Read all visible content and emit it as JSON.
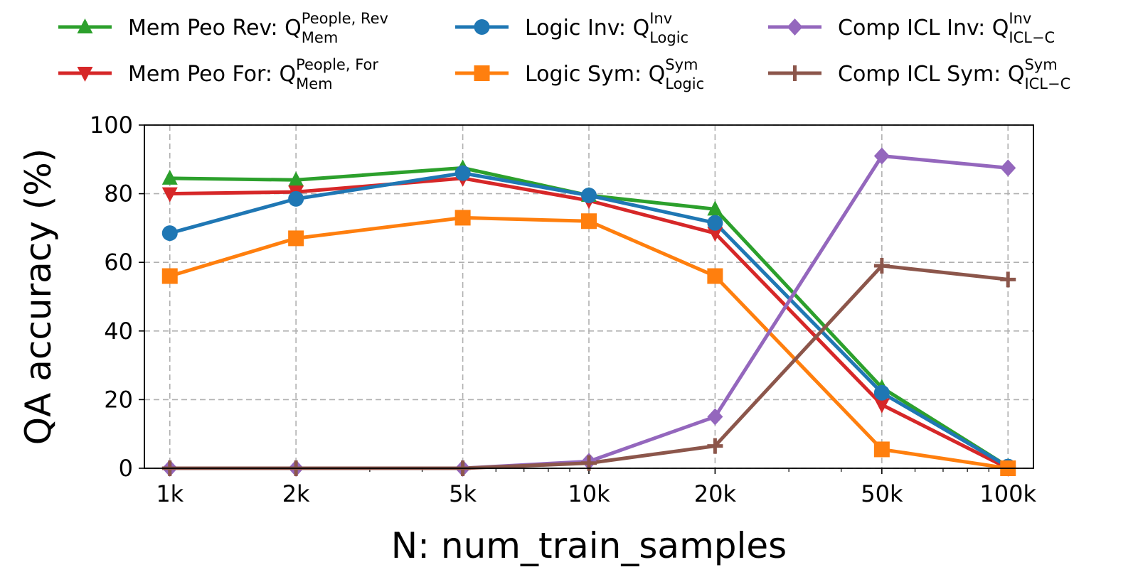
{
  "chart_data": {
    "type": "line",
    "title": "",
    "xlabel": "N: num_train_samples",
    "ylabel": "QA accuracy (%)",
    "xscale": "log",
    "x": [
      1000,
      2000,
      5000,
      10000,
      20000,
      50000,
      100000
    ],
    "xticklabels": [
      "1k",
      "2k",
      "5k",
      "10k",
      "20k",
      "50k",
      "100k"
    ],
    "ylim": [
      0,
      100
    ],
    "yticks": [
      0,
      20,
      40,
      60,
      80,
      100
    ],
    "grid": true,
    "legend_position": "top",
    "series": [
      {
        "name": "Mem Peo Rev",
        "legend_prefix": "Mem Peo Rev: Q",
        "sup": "People, Rev",
        "sub": "Mem",
        "color": "#2ca02c",
        "marker": "triangle-up",
        "values": [
          84.5,
          84,
          87.5,
          79.5,
          75.5,
          23.5,
          0.5
        ]
      },
      {
        "name": "Mem Peo For",
        "legend_prefix": "Mem Peo For: Q",
        "sup": "People, For",
        "sub": "Mem",
        "color": "#d62728",
        "marker": "triangle-down",
        "values": [
          80,
          80.5,
          84.5,
          78,
          68.5,
          18.5,
          0
        ]
      },
      {
        "name": "Logic Inv",
        "legend_prefix": "Logic Inv: Q",
        "sup": "Inv",
        "sub": "Logic",
        "color": "#1f77b4",
        "marker": "circle",
        "values": [
          68.5,
          78.5,
          86,
          79.5,
          71.5,
          22,
          0.5
        ]
      },
      {
        "name": "Logic Sym",
        "legend_prefix": "Logic Sym: Q",
        "sup": "Sym",
        "sub": "Logic",
        "color": "#ff7f0e",
        "marker": "square",
        "values": [
          56,
          67,
          73,
          72,
          56,
          5.5,
          0
        ]
      },
      {
        "name": "Comp ICL Inv",
        "legend_prefix": "Comp ICL Inv: Q",
        "sup": "Inv",
        "sub": "ICL−C",
        "color": "#9467bd",
        "marker": "diamond",
        "values": [
          0,
          0,
          0,
          2,
          15,
          91,
          87.5
        ]
      },
      {
        "name": "Comp ICL Sym",
        "legend_prefix": "Comp ICL Sym: Q",
        "sup": "Sym",
        "sub": "ICL−C",
        "color": "#8c564b",
        "marker": "plus",
        "values": [
          0,
          0,
          0,
          1.5,
          6.5,
          59,
          55
        ]
      }
    ]
  }
}
